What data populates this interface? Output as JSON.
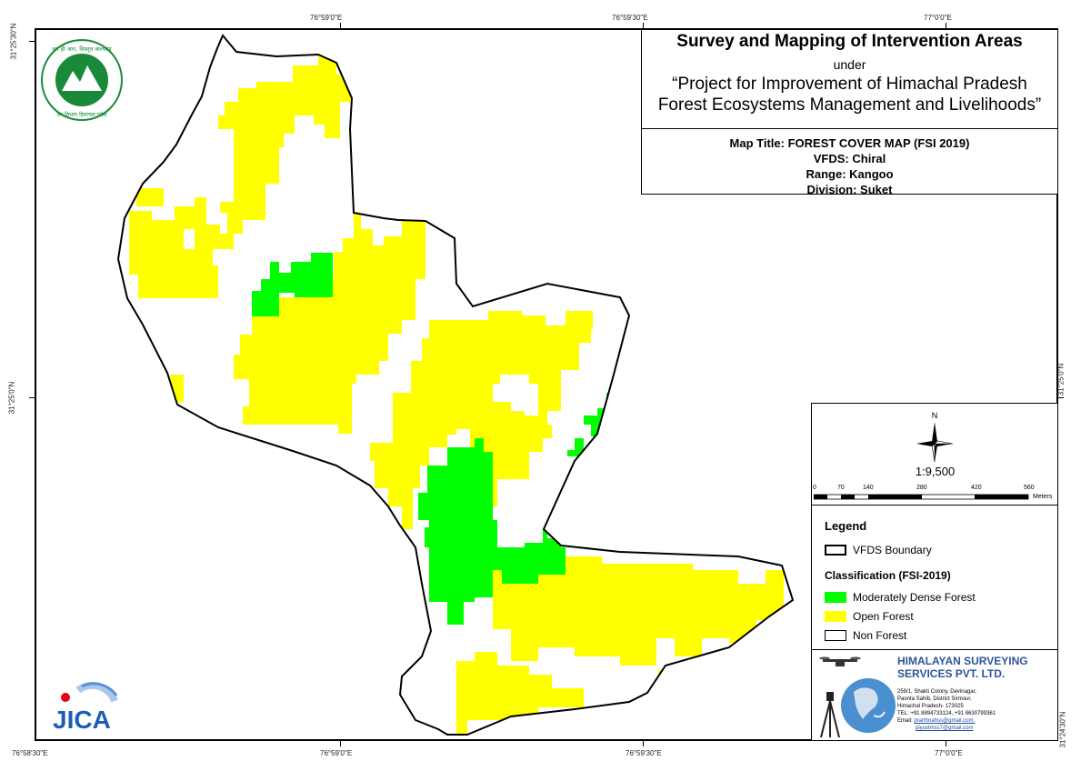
{
  "coordinates": {
    "top": [
      "76°59'0\"E",
      "76°59'30\"E",
      "77°0'0\"E"
    ],
    "bottom": [
      "76°58'30\"E",
      "76°59'0\"E",
      "76°59'30\"E",
      "77°0'0\"E"
    ],
    "left": [
      "31°25'30\"N",
      "31°25'0\"N"
    ],
    "right": [
      "31°25'0\"N",
      "31°24'30\"N"
    ]
  },
  "title": {
    "main": "Survey and Mapping of Intervention Areas",
    "under": "under",
    "project_line1": "“Project for Improvement of Himachal Pradesh",
    "project_line2": "Forest Ecosystems Management and Livelihoods”"
  },
  "map_info": {
    "map_title": "Map Title: FOREST COVER MAP (FSI 2019)",
    "vfds": "VFDS: Chiral",
    "range": "Range: Kangoo",
    "division": "Division: Suket"
  },
  "north_arrow": {
    "label": "N",
    "icon": "north-arrow-icon"
  },
  "scale": {
    "ratio": "1:9,500",
    "labels": [
      "0",
      "70",
      "140",
      "280",
      "420",
      "560"
    ],
    "unit": "Meters"
  },
  "legend": {
    "title": "Legend",
    "boundary": "VFDS Boundary",
    "classification_title": "Classification (FSI-2019)",
    "items": [
      {
        "label": "Moderately Dense Forest",
        "color": "#00ff00"
      },
      {
        "label": "Open Forest",
        "color": "#ffff00"
      },
      {
        "label": "Non Forest",
        "color": "#ffffff"
      }
    ]
  },
  "company": {
    "name_line1": "HIMALAYAN SURVEYING",
    "name_line2": "SERVICES PVT. LTD.",
    "address": [
      "259/1, Shakti Colony, Devinagar,",
      "Paonta Sahib, District Sirmour,",
      "Himachal Pradesh- 173025",
      "TEL: +91 8894733124, +91 8630799361"
    ],
    "email_label": "Email:",
    "email1": "prarthnahss@gmail.com,",
    "email2": "piyushhss7@gmail.com"
  },
  "logos": {
    "forest_dept_text_top": "वन ही जल, विस्तृत कल्याण",
    "forest_dept_text_bottom": "वन विभाग हिमाचल प्रदेश",
    "jica": "JICA"
  },
  "colors": {
    "dense": "#00ff00",
    "open": "#ffff00",
    "non": "#ffffff",
    "company": "#2f5597",
    "forest_logo": "#1a8a3a",
    "jica_blue": "#1a5fb4",
    "jica_red": "#e60012"
  }
}
